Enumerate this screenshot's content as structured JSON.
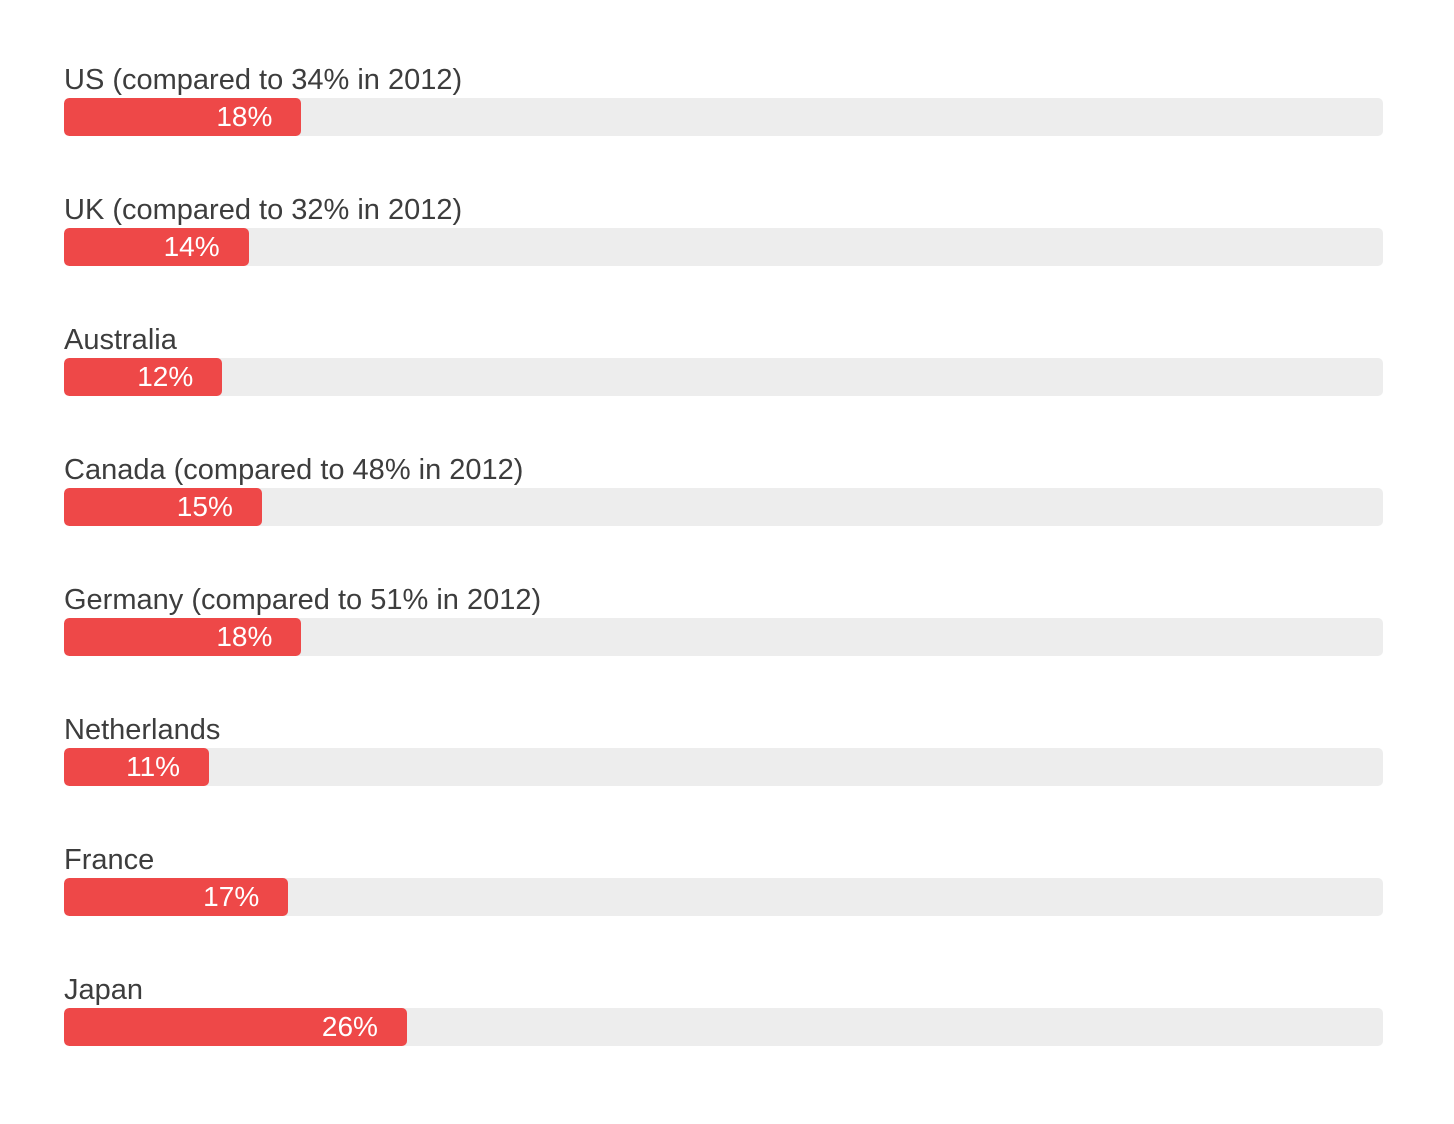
{
  "chart_data": {
    "type": "bar",
    "orientation": "horizontal",
    "title": "",
    "xlabel": "",
    "ylabel": "",
    "xlim": [
      0,
      100
    ],
    "grid": false,
    "legend": false,
    "axes_visible": false,
    "categories": [
      "US (compared to 34% in 2012)",
      "UK (compared to 32% in 2012)",
      "Australia",
      "Canada (compared to 48% in 2012)",
      "Germany (compared to 51% in 2012)",
      "Netherlands",
      "France",
      "Japan"
    ],
    "values": [
      18,
      14,
      12,
      15,
      18,
      11,
      17,
      26
    ],
    "value_labels": [
      "18%",
      "14%",
      "12%",
      "15%",
      "18%",
      "11%",
      "17%",
      "26%"
    ],
    "bar_color": "#ee4848",
    "track_color": "#ededed",
    "label_color": "#3d3d3d",
    "value_text_color": "#ffffff",
    "background_color": "#ffffff"
  }
}
